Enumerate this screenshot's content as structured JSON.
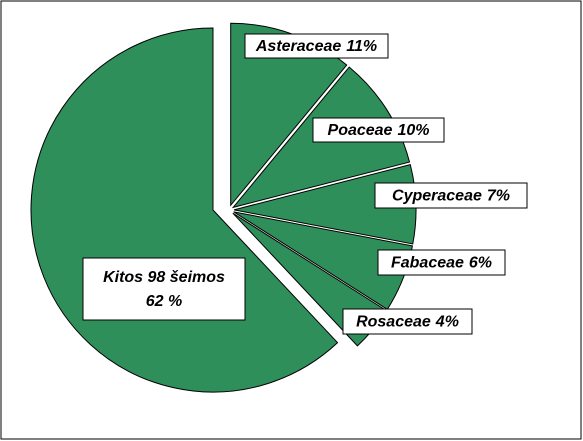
{
  "chart_data": {
    "type": "pie",
    "categories": [
      "Asteraceae",
      "Poaceae",
      "Cyperaceae",
      "Fabaceae",
      "Rosaceae",
      "Kitos 98 šeimos"
    ],
    "values": [
      11,
      10,
      7,
      6,
      4,
      62
    ],
    "value_labels": [
      "11%",
      "10%",
      "7%",
      "6%",
      "4%",
      "62 %"
    ],
    "color": "#2f8f5b"
  }
}
